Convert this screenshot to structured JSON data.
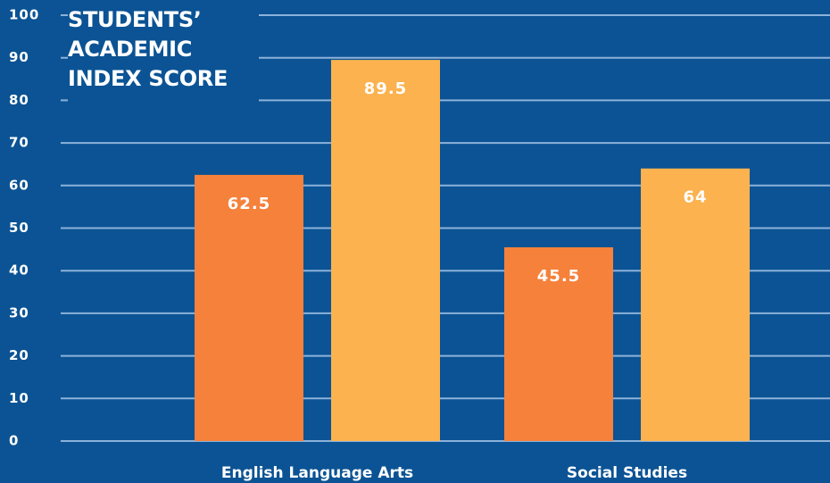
{
  "chart_data": {
    "type": "bar",
    "title": "STUDENTS’ ACADEMIC INDEX SCORE",
    "categories": [
      "English Language Arts",
      "Social Studies"
    ],
    "series": [
      {
        "color": "#f5813b",
        "values": [
          62.5,
          45.5
        ]
      },
      {
        "color": "#fbb24f",
        "values": [
          89.5,
          64
        ]
      }
    ],
    "ylim": [
      0,
      100
    ],
    "yticks": [
      0,
      10,
      20,
      30,
      40,
      50,
      60,
      70,
      80,
      90,
      100
    ],
    "grid": true
  }
}
